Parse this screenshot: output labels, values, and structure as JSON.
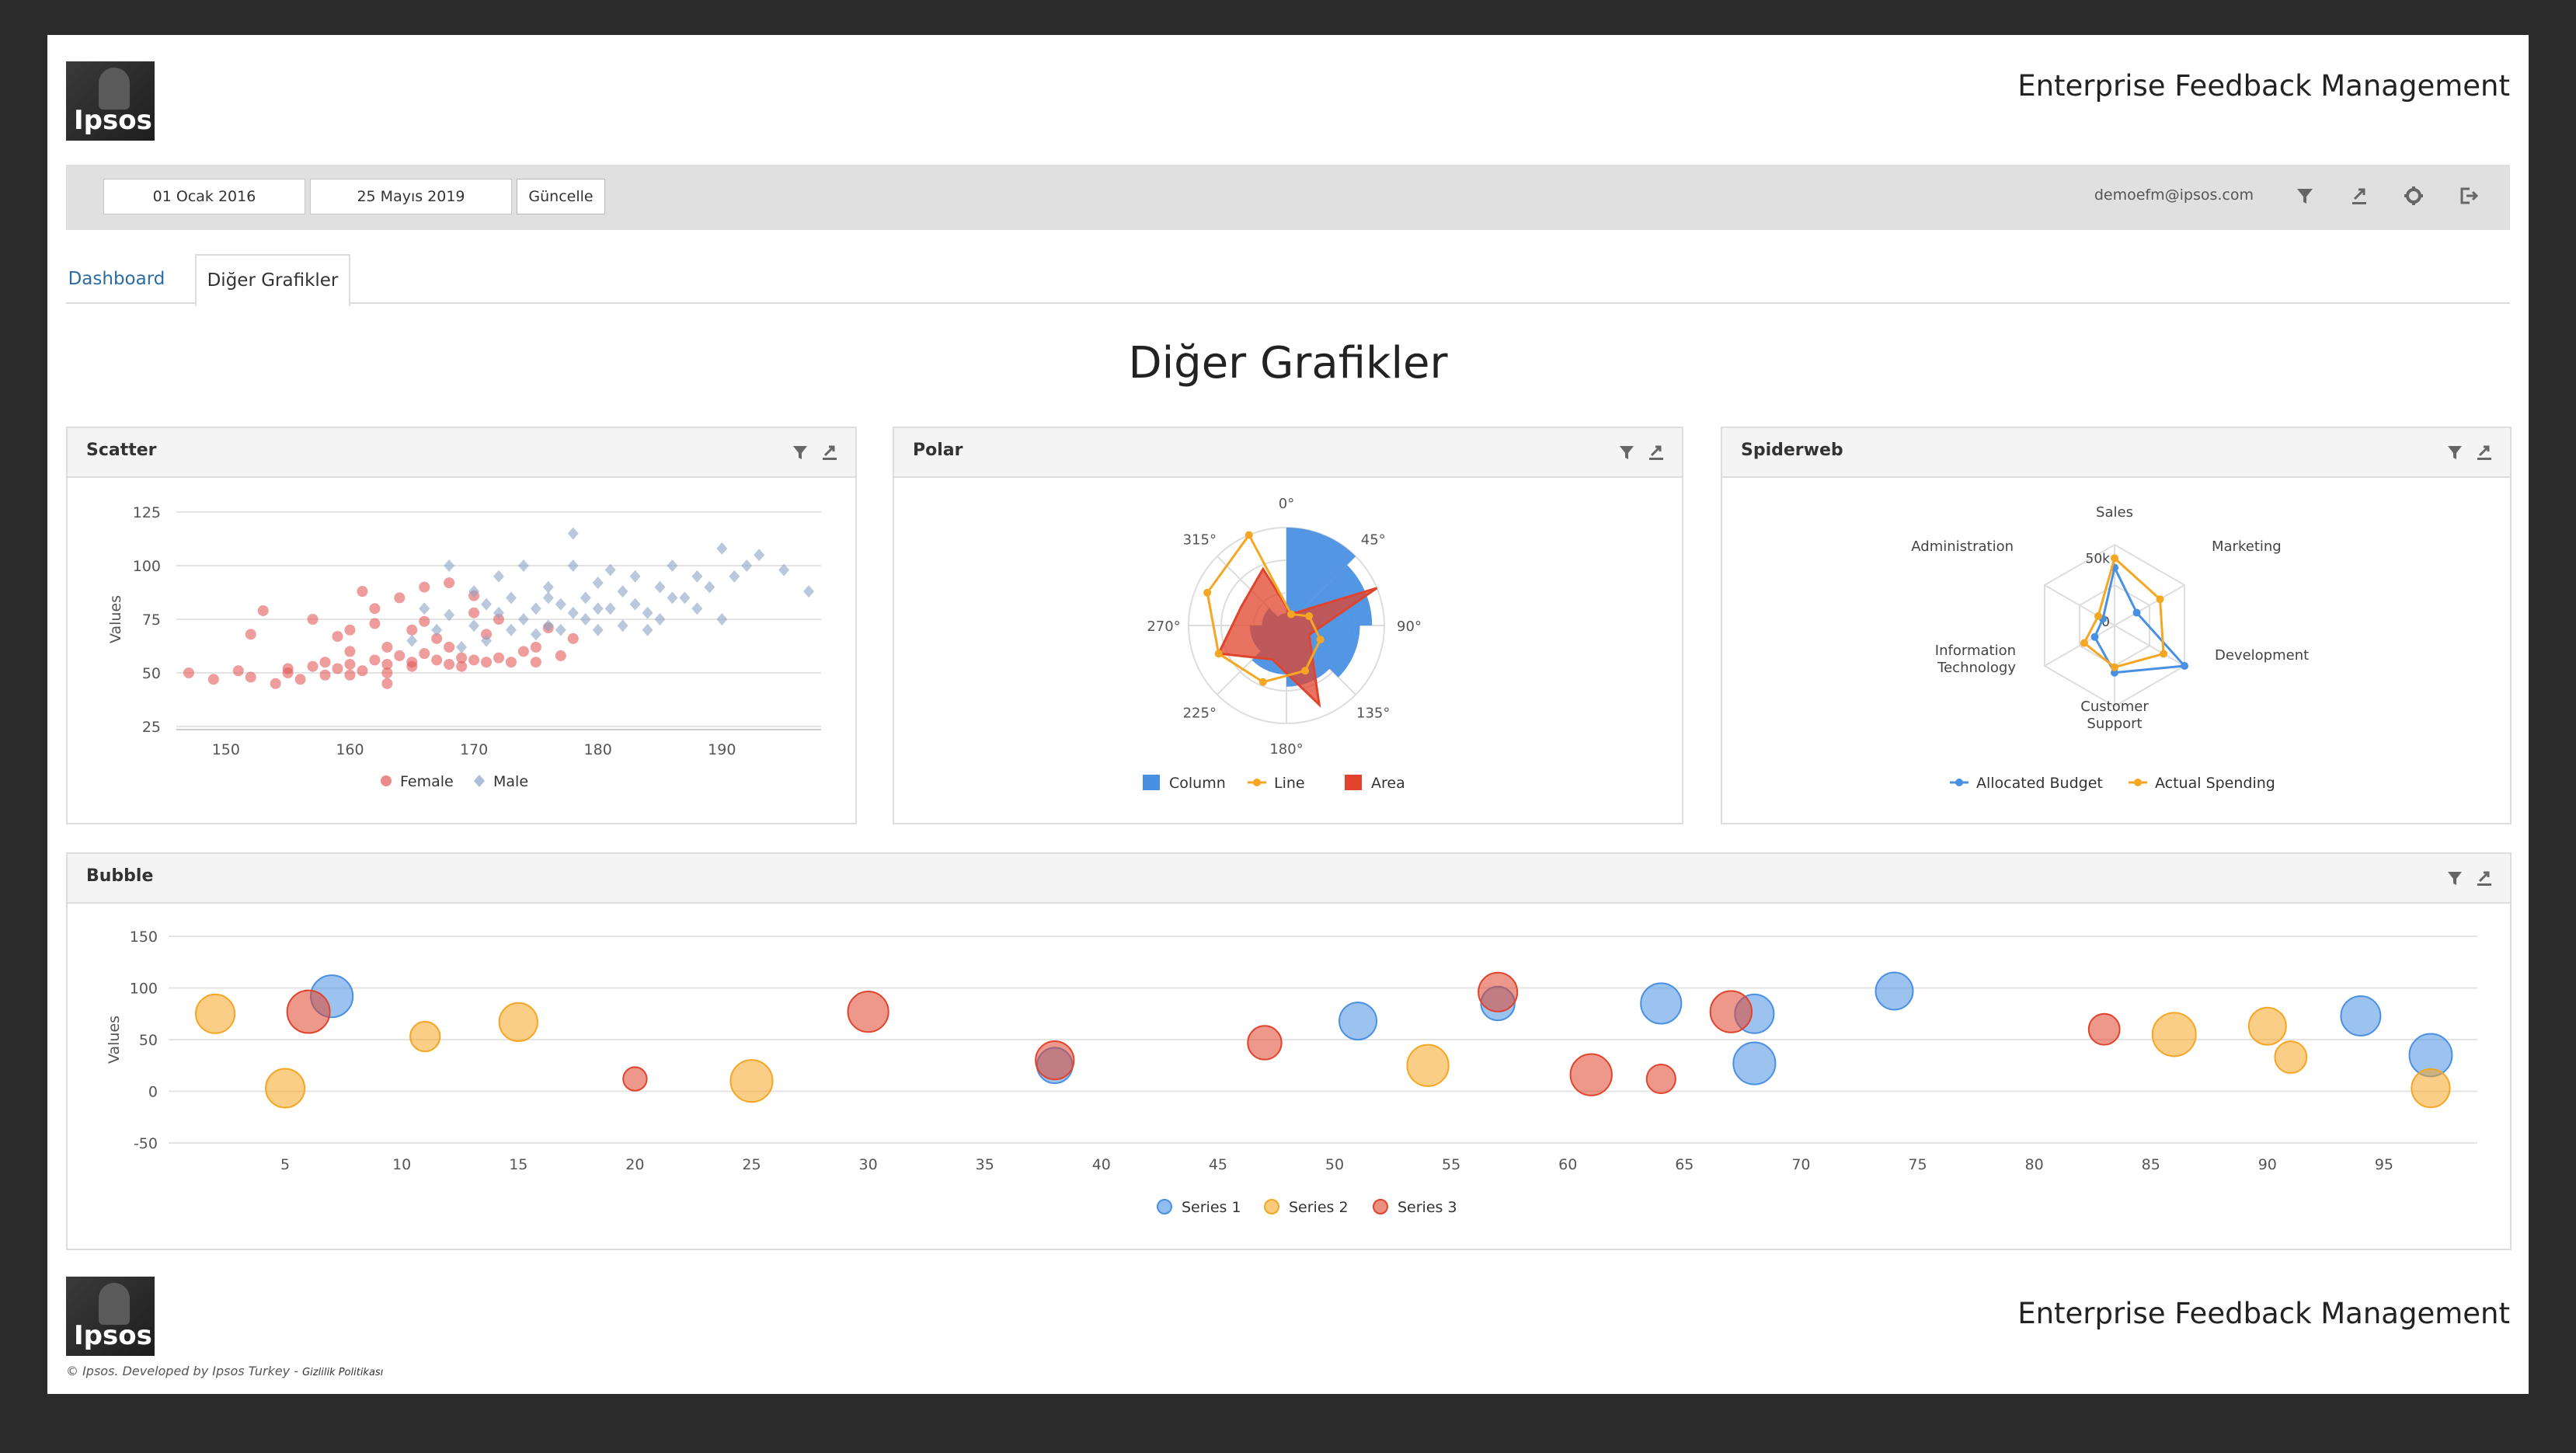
{
  "header": {
    "logo_text": "Ipsos",
    "app_title": "Enterprise Feedback Management"
  },
  "toolbar": {
    "start_date": "01 Ocak 2016",
    "end_date": "25 Mayıs 2019",
    "update_label": "Güncelle",
    "user_email": "demoefm@ipsos.com",
    "icons": [
      "filter-icon",
      "export-icon",
      "settings-gear-icon",
      "logout-icon"
    ]
  },
  "tabs": [
    {
      "label": "Dashboard",
      "active": false
    },
    {
      "label": "Diğer Grafikler",
      "active": true
    }
  ],
  "page_title": "Diğer Grafikler",
  "panels": {
    "scatter": {
      "title": "Scatter"
    },
    "polar": {
      "title": "Polar"
    },
    "spiderweb": {
      "title": "Spiderweb"
    },
    "bubble": {
      "title": "Bubble"
    }
  },
  "footer": {
    "logo_text": "Ipsos",
    "app_title": "Enterprise Feedback Management",
    "copyright": "© Ipsos. Developed by Ipsos Turkey - ",
    "policy_link": "Gizlilik Politikası"
  },
  "colors": {
    "blue": "#4a90e2",
    "orange": "#f5a623",
    "red": "#e0442c",
    "female": "#e25a5a",
    "male": "#8aa3c7"
  },
  "chart_data": [
    {
      "id": "scatter",
      "type": "scatter",
      "ylabel": "Values",
      "xlim": [
        146,
        198
      ],
      "ylim": [
        25,
        125
      ],
      "xticks": [
        150,
        160,
        170,
        180,
        190
      ],
      "yticks": [
        25,
        50,
        75,
        100,
        125
      ],
      "legend_position": "bottom",
      "series": [
        {
          "name": "Female",
          "marker": "circle",
          "color": "#e25a5a",
          "points": [
            [
              147,
              50
            ],
            [
              149,
              47
            ],
            [
              151,
              51
            ],
            [
              152,
              48
            ],
            [
              152,
              68
            ],
            [
              153,
              79
            ],
            [
              154,
              45
            ],
            [
              155,
              50
            ],
            [
              155,
              52
            ],
            [
              156,
              47
            ],
            [
              157,
              75
            ],
            [
              158,
              55
            ],
            [
              158,
              49
            ],
            [
              159,
              52
            ],
            [
              159,
              67
            ],
            [
              160,
              54
            ],
            [
              160,
              49
            ],
            [
              160,
              60
            ],
            [
              161,
              88
            ],
            [
              161,
              51
            ],
            [
              162,
              56
            ],
            [
              162,
              73
            ],
            [
              163,
              54
            ],
            [
              163,
              62
            ],
            [
              163,
              50
            ],
            [
              164,
              85
            ],
            [
              164,
              58
            ],
            [
              165,
              53
            ],
            [
              165,
              70
            ],
            [
              165,
              55
            ],
            [
              166,
              59
            ],
            [
              166,
              90
            ],
            [
              167,
              56
            ],
            [
              167,
              66
            ],
            [
              168,
              54
            ],
            [
              168,
              62
            ],
            [
              169,
              53
            ],
            [
              169,
              57
            ],
            [
              170,
              78
            ],
            [
              170,
              56
            ],
            [
              171,
              55
            ],
            [
              171,
              68
            ],
            [
              172,
              57
            ],
            [
              172,
              75
            ],
            [
              173,
              55
            ],
            [
              174,
              60
            ],
            [
              175,
              62
            ],
            [
              176,
              71
            ],
            [
              177,
              58
            ],
            [
              178,
              66
            ],
            [
              160,
              70
            ],
            [
              162,
              80
            ],
            [
              168,
              92
            ],
            [
              170,
              86
            ],
            [
              175,
              55
            ],
            [
              163,
              45
            ],
            [
              157,
              53
            ],
            [
              166,
              74
            ]
          ]
        },
        {
          "name": "Male",
          "marker": "diamond",
          "color": "#8aa3c7",
          "points": [
            [
              165,
              65
            ],
            [
              166,
              80
            ],
            [
              167,
              70
            ],
            [
              168,
              77
            ],
            [
              168,
              100
            ],
            [
              169,
              62
            ],
            [
              170,
              72
            ],
            [
              170,
              88
            ],
            [
              171,
              82
            ],
            [
              171,
              65
            ],
            [
              172,
              78
            ],
            [
              172,
              95
            ],
            [
              173,
              70
            ],
            [
              173,
              85
            ],
            [
              174,
              100
            ],
            [
              174,
              75
            ],
            [
              175,
              80
            ],
            [
              175,
              68
            ],
            [
              176,
              90
            ],
            [
              176,
              72
            ],
            [
              177,
              82
            ],
            [
              177,
              70
            ],
            [
              178,
              115
            ],
            [
              178,
              78
            ],
            [
              179,
              85
            ],
            [
              179,
              75
            ],
            [
              180,
              92
            ],
            [
              180,
              70
            ],
            [
              181,
              80
            ],
            [
              181,
              98
            ],
            [
              182,
              88
            ],
            [
              182,
              72
            ],
            [
              183,
              82
            ],
            [
              183,
              95
            ],
            [
              184,
              78
            ],
            [
              185,
              90
            ],
            [
              185,
              75
            ],
            [
              186,
              100
            ],
            [
              187,
              85
            ],
            [
              188,
              80
            ],
            [
              188,
              95
            ],
            [
              189,
              90
            ],
            [
              190,
              108
            ],
            [
              190,
              75
            ],
            [
              191,
              95
            ],
            [
              192,
              100
            ],
            [
              193,
              105
            ],
            [
              195,
              98
            ],
            [
              197,
              88
            ],
            [
              186,
              85
            ],
            [
              184,
              70
            ],
            [
              180,
              80
            ],
            [
              178,
              100
            ],
            [
              176,
              85
            ]
          ]
        }
      ]
    },
    {
      "id": "polar",
      "type": "polar",
      "angle_labels": [
        "0°",
        "45°",
        "90°",
        "135°",
        "180°",
        "225°",
        "270°",
        "315°"
      ],
      "legend_position": "bottom",
      "series": [
        {
          "name": "Column",
          "type": "column",
          "color": "#4a90e2",
          "values": [
            8,
            7,
            6,
            5,
            4,
            3,
            2,
            1
          ]
        },
        {
          "name": "Line",
          "type": "line",
          "color": "#f5a623",
          "values": [
            1,
            2,
            3,
            4,
            5,
            6,
            7,
            8
          ]
        },
        {
          "name": "Area",
          "type": "area",
          "color": "#e0442c",
          "values": [
            1,
            8,
            2,
            7,
            3,
            6,
            4,
            5
          ]
        }
      ],
      "rmax": 8
    },
    {
      "id": "spiderweb",
      "type": "spiderweb",
      "categories": [
        "Sales",
        "Marketing",
        "Development",
        "Customer Support",
        "Information Technology",
        "Administration"
      ],
      "rticks": [
        "0",
        "50k"
      ],
      "rmax": 60000,
      "legend_position": "bottom",
      "series": [
        {
          "name": "Allocated Budget",
          "color": "#4a90e2",
          "values": [
            43000,
            19000,
            60000,
            35000,
            17000,
            10000
          ]
        },
        {
          "name": "Actual Spending",
          "color": "#f5a623",
          "values": [
            50000,
            39000,
            42000,
            31000,
            26000,
            14000
          ]
        }
      ]
    },
    {
      "id": "bubble",
      "type": "bubble",
      "ylabel": "Values",
      "xlim": [
        0,
        99
      ],
      "ylim": [
        -50,
        150
      ],
      "xticks": [
        5,
        10,
        15,
        20,
        25,
        30,
        35,
        40,
        45,
        50,
        55,
        60,
        65,
        70,
        75,
        80,
        85,
        90,
        95
      ],
      "yticks": [
        -50,
        0,
        50,
        100,
        150
      ],
      "legend_position": "bottom",
      "series": [
        {
          "name": "Series 1",
          "color": "#4a90e2",
          "points": [
            [
              7,
              92,
              70
            ],
            [
              38,
              25,
              50
            ],
            [
              51,
              68,
              55
            ],
            [
              57,
              85,
              45
            ],
            [
              64,
              85,
              65
            ],
            [
              68,
              75,
              60
            ],
            [
              68,
              27,
              70
            ],
            [
              74,
              97,
              55
            ],
            [
              94,
              73,
              62
            ],
            [
              97,
              35,
              72
            ]
          ]
        },
        {
          "name": "Series 2",
          "color": "#f5a623",
          "points": [
            [
              2,
              75,
              60
            ],
            [
              5,
              3,
              60
            ],
            [
              11,
              53,
              35
            ],
            [
              15,
              67,
              58
            ],
            [
              25,
              10,
              70
            ],
            [
              54,
              25,
              68
            ],
            [
              86,
              55,
              75
            ],
            [
              90,
              63,
              55
            ],
            [
              91,
              33,
              40
            ],
            [
              97,
              3,
              58
            ]
          ]
        },
        {
          "name": "Series 3",
          "color": "#e0442c",
          "points": [
            [
              6,
              77,
              72
            ],
            [
              20,
              12,
              22
            ],
            [
              30,
              77,
              65
            ],
            [
              38,
              30,
              58
            ],
            [
              47,
              47,
              45
            ],
            [
              57,
              96,
              60
            ],
            [
              61,
              16,
              68
            ],
            [
              64,
              12,
              33
            ],
            [
              67,
              77,
              68
            ],
            [
              83,
              60,
              38
            ]
          ]
        }
      ]
    }
  ]
}
